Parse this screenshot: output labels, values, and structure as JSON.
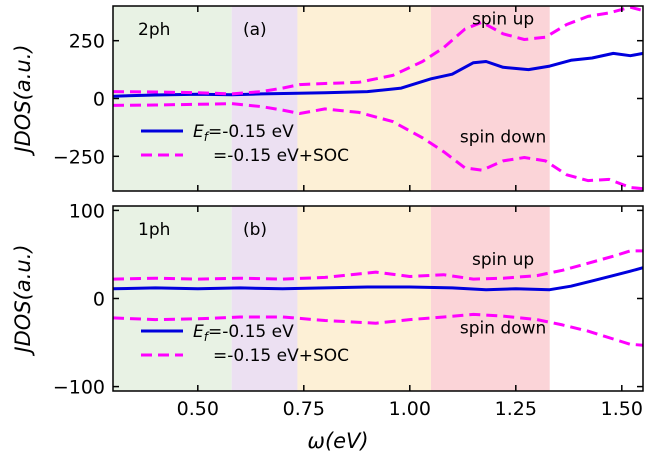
{
  "chart_data": [
    {
      "type": "line",
      "panel_label": "(a)",
      "process_label": "2ph",
      "ylabel": "JDOS(a.u.)",
      "xlim": [
        0.3,
        1.55
      ],
      "ylim": [
        -400,
        400
      ],
      "yticks": [
        -250,
        0,
        250
      ],
      "ytick_labels": [
        "−250",
        "0",
        "250"
      ],
      "annotations": [
        {
          "text": "spin up",
          "x": 1.22,
          "y": 320
        },
        {
          "text": "spin down",
          "x": 1.22,
          "y": -190
        }
      ],
      "series": [
        {
          "name": "E_f=-0.15 eV",
          "legend_prefix": "E",
          "legend_sub": "f",
          "legend_suffix": "=-0.15 eV",
          "color": "#0000dd",
          "style": "solid",
          "x": [
            0.3,
            0.4,
            0.5,
            0.58,
            0.65,
            0.72,
            0.8,
            0.9,
            0.98,
            1.05,
            1.1,
            1.15,
            1.18,
            1.22,
            1.28,
            1.33,
            1.38,
            1.43,
            1.48,
            1.52,
            1.55
          ],
          "y": [
            10,
            15,
            18,
            16,
            20,
            22,
            25,
            30,
            45,
            85,
            105,
            155,
            160,
            135,
            125,
            140,
            165,
            175,
            195,
            185,
            195
          ]
        },
        {
          "name": "=-0.15 eV+SOC",
          "color": "#ff00ff",
          "style": "dashed",
          "x": [
            0.3,
            0.4,
            0.5,
            0.58,
            0.65,
            0.7,
            0.74,
            0.8,
            0.88,
            0.96,
            1.03,
            1.08,
            1.13,
            1.17,
            1.22,
            1.27,
            1.32,
            1.37,
            1.42,
            1.47,
            1.52,
            1.55
          ],
          "y": [
            30,
            28,
            25,
            20,
            30,
            45,
            60,
            65,
            70,
            100,
            160,
            220,
            300,
            330,
            280,
            255,
            265,
            320,
            355,
            370,
            395,
            380
          ]
        },
        {
          "name": "",
          "color": "#ff00ff",
          "style": "dashed",
          "x": [
            0.3,
            0.4,
            0.5,
            0.58,
            0.65,
            0.7,
            0.74,
            0.8,
            0.88,
            0.96,
            1.03,
            1.08,
            1.13,
            1.17,
            1.22,
            1.27,
            1.32,
            1.37,
            1.42,
            1.47,
            1.52,
            1.55
          ],
          "y": [
            -30,
            -28,
            -25,
            -22,
            -35,
            -50,
            -65,
            -45,
            -60,
            -100,
            -170,
            -230,
            -300,
            -310,
            -270,
            -255,
            -270,
            -330,
            -355,
            -350,
            -385,
            -390
          ]
        }
      ]
    },
    {
      "type": "line",
      "panel_label": "(b)",
      "process_label": "1ph",
      "ylabel": "JDOS(a.u.)",
      "xlabel": "ω(eV)",
      "xlim": [
        0.3,
        1.55
      ],
      "ylim": [
        -105,
        105
      ],
      "yticks": [
        -100,
        0,
        100
      ],
      "ytick_labels": [
        "−100",
        "0",
        "100"
      ],
      "xticks": [
        0.5,
        0.75,
        1.0,
        1.25,
        1.5
      ],
      "xtick_labels": [
        "0.50",
        "0.75",
        "1.00",
        "1.25",
        "1.50"
      ],
      "annotations": [
        {
          "text": "spin up",
          "x": 1.22,
          "y": 38
        },
        {
          "text": "spin down",
          "x": 1.22,
          "y": -40
        }
      ],
      "series": [
        {
          "name": "E_f=-0.15 eV",
          "legend_prefix": "E",
          "legend_sub": "f",
          "legend_suffix": "=-0.15 eV",
          "color": "#0000dd",
          "style": "solid",
          "x": [
            0.3,
            0.4,
            0.5,
            0.6,
            0.7,
            0.8,
            0.9,
            1.0,
            1.1,
            1.18,
            1.25,
            1.33,
            1.38,
            1.43,
            1.48,
            1.52,
            1.55
          ],
          "y": [
            11,
            12,
            11,
            12,
            11,
            12,
            13,
            13,
            12,
            10,
            11,
            10,
            14,
            20,
            26,
            31,
            35
          ]
        },
        {
          "name": "=-0.15 eV+SOC",
          "color": "#ff00ff",
          "style": "dashed",
          "x": [
            0.3,
            0.4,
            0.5,
            0.6,
            0.7,
            0.8,
            0.92,
            1.0,
            1.08,
            1.15,
            1.22,
            1.3,
            1.36,
            1.42,
            1.48,
            1.52,
            1.55
          ],
          "y": [
            22,
            23,
            22,
            23,
            22,
            24,
            30,
            25,
            27,
            22,
            23,
            26,
            32,
            40,
            48,
            54,
            54
          ]
        },
        {
          "name": "",
          "color": "#ff00ff",
          "style": "dashed",
          "x": [
            0.3,
            0.4,
            0.5,
            0.6,
            0.7,
            0.8,
            0.92,
            1.0,
            1.08,
            1.15,
            1.22,
            1.3,
            1.36,
            1.42,
            1.48,
            1.52,
            1.55
          ],
          "y": [
            -22,
            -24,
            -23,
            -21,
            -21,
            -25,
            -28,
            -24,
            -21,
            -18,
            -20,
            -24,
            -30,
            -37,
            -46,
            -52,
            -53
          ]
        }
      ]
    }
  ],
  "regions": [
    {
      "x0": 0.3,
      "x1": 0.58,
      "color": "#e8f2e4"
    },
    {
      "x0": 0.58,
      "x1": 0.735,
      "color": "#ece0f2"
    },
    {
      "x0": 0.735,
      "x1": 1.05,
      "color": "#fdf0d6"
    },
    {
      "x0": 1.05,
      "x1": 1.33,
      "color": "#fbd4d8"
    }
  ]
}
